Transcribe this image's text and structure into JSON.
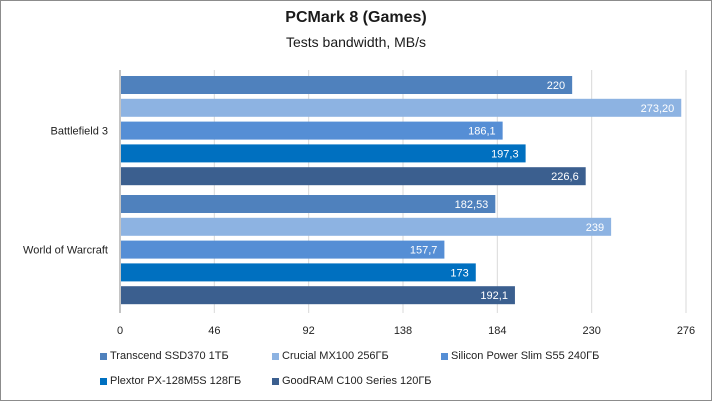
{
  "chart_data": {
    "type": "bar",
    "orientation": "horizontal",
    "title": "PCMark 8 (Games)",
    "subtitle": "Tests bandwidth, MB/s",
    "categories": [
      "Battlefield 3",
      "World of Warcraft"
    ],
    "xlim": [
      0,
      276
    ],
    "ticks": [
      "0",
      "46",
      "92",
      "138",
      "184",
      "230",
      "276"
    ],
    "tick_values": [
      0,
      46,
      92,
      138,
      184,
      230,
      276
    ],
    "grid": true,
    "legend_position": "bottom",
    "series": [
      {
        "name": "Transcend SSD370 1ТБ",
        "color": "#4f81bd",
        "values": [
          220,
          182.53
        ],
        "labels": [
          "220",
          "182,53"
        ]
      },
      {
        "name": "Crucial MX100 256ГБ",
        "color": "#8db3e2",
        "values": [
          273.2,
          239
        ],
        "labels": [
          "273,20",
          "239"
        ]
      },
      {
        "name": "Silicon Power Slim S55 240ГБ",
        "color": "#558ed5",
        "values": [
          186.1,
          157.7
        ],
        "labels": [
          "186,1",
          "157,7"
        ]
      },
      {
        "name": "Plextor PX-128M5S 128ГБ",
        "color": "#0070c0",
        "values": [
          197.3,
          173
        ],
        "labels": [
          "197,3",
          "173"
        ]
      },
      {
        "name": "GoodRAM  C100 Series 120ГБ",
        "color": "#3b5f8f",
        "values": [
          226.6,
          192.1
        ],
        "labels": [
          "226,6",
          "192,1"
        ]
      }
    ]
  }
}
